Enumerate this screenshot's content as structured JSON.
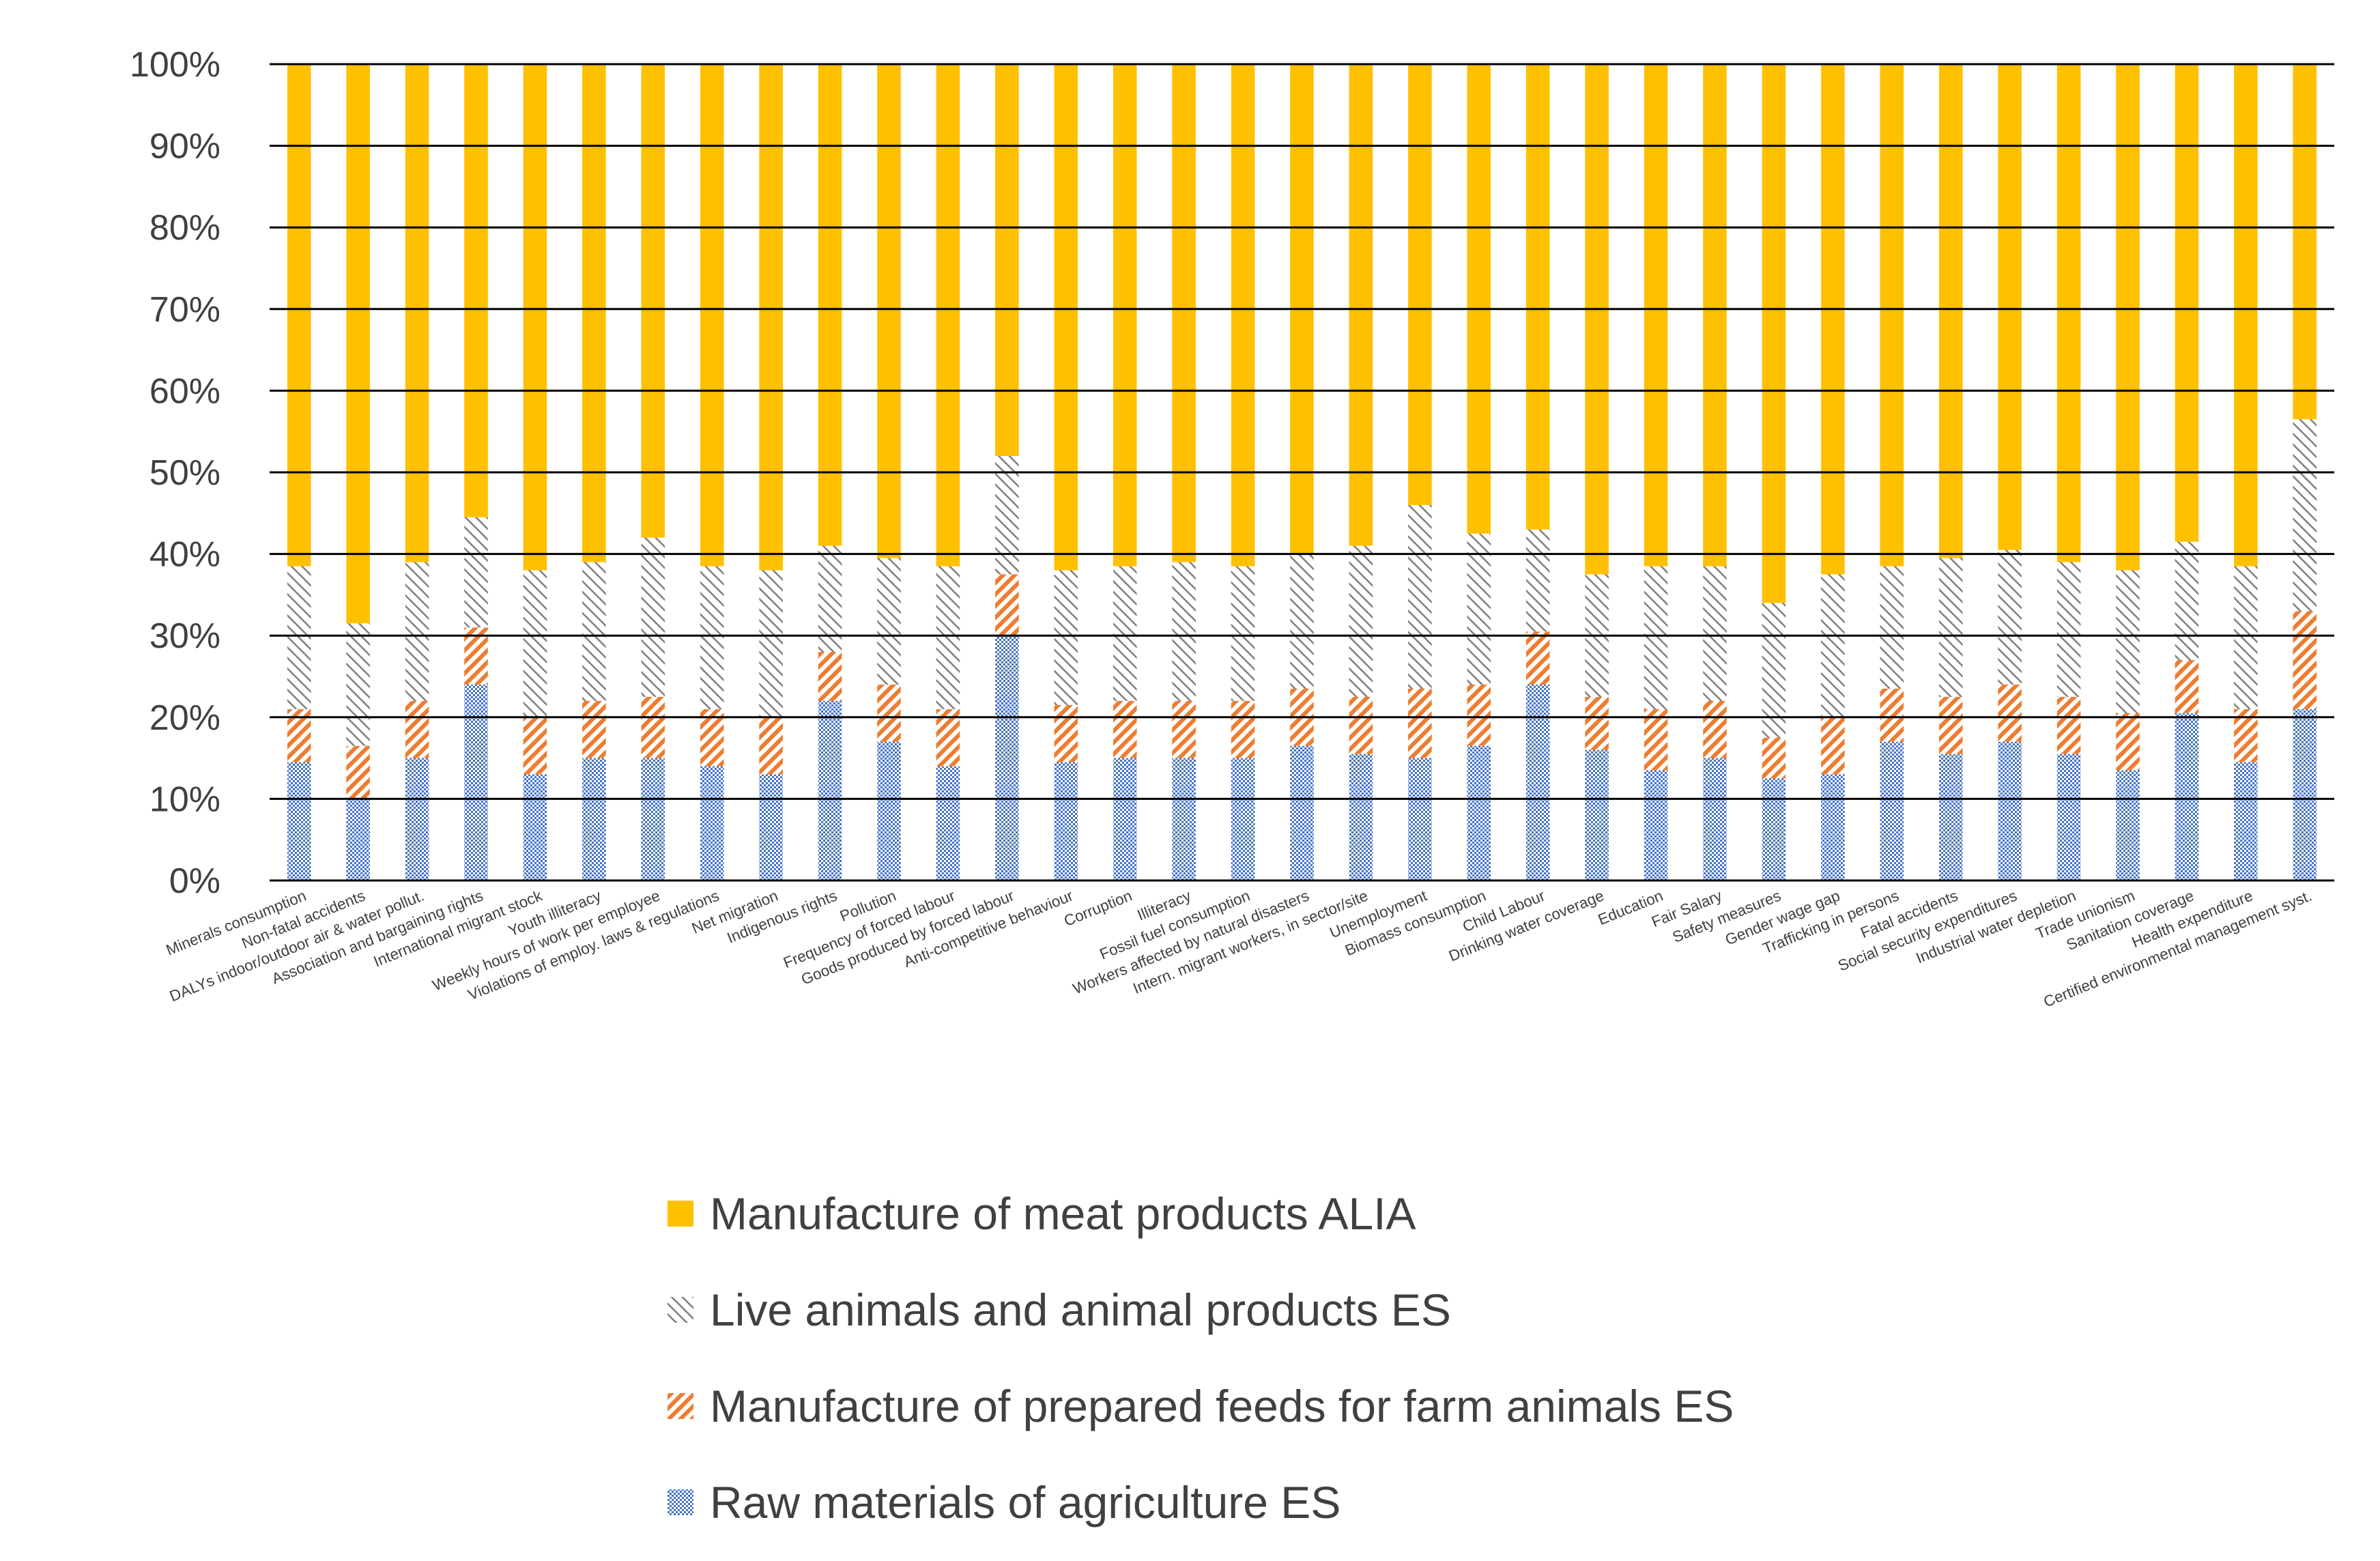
{
  "chart_data": {
    "type": "bar",
    "stacked": "percent",
    "title": "",
    "xlabel": "",
    "ylabel": "",
    "ylim": [
      0,
      100
    ],
    "yticks": [
      "0%",
      "10%",
      "20%",
      "30%",
      "40%",
      "50%",
      "60%",
      "70%",
      "80%",
      "90%",
      "100%"
    ],
    "legend_position": "bottom",
    "categories": [
      "Minerals consumption",
      "Non-fatal accidents",
      "DALYs indoor/outdoor air & water pollut.",
      "Association and bargaining rights",
      "International migrant stock",
      "Youth illiteracy",
      "Weekly hours of work per employee",
      "Violations of employ. laws & regulations",
      "Net migration",
      "Indigenous rights",
      "Pollution",
      "Frequency of forced labour",
      "Goods produced by forced labour",
      "Anti-competitive behaviour",
      "Corruption",
      "Illiteracy",
      "Fossil fuel consumption",
      "Workers affected by natural disasters",
      "Intern. migrant workers, in sector/site",
      "Unemployment",
      "Biomass consumption",
      "Child Labour",
      "Drinking water coverage",
      "Education",
      "Fair Salary",
      "Safety measures",
      "Gender wage gap",
      "Trafficking in persons",
      "Fatal accidents",
      "Social security expenditures",
      "Industrial water depletion",
      "Trade unionism",
      "Sanitation coverage",
      "Health expenditure",
      "Certified environmental management syst."
    ],
    "series": [
      {
        "name": "Raw materials of agriculture ES",
        "color": "#4472C4",
        "pattern": "checker",
        "values": [
          14.5,
          10,
          15,
          24,
          13,
          15,
          15,
          14,
          13,
          22,
          17,
          14,
          30,
          14.5,
          15,
          15,
          15,
          16.5,
          15.5,
          15,
          16.5,
          24,
          16,
          13.5,
          15,
          12.5,
          13,
          17,
          15.5,
          17,
          15.5,
          13.5,
          20.5,
          14.5,
          21
        ]
      },
      {
        "name": "Manufacture of prepared feeds for farm animals ES",
        "color": "#ED7D31",
        "pattern": "diagonal-down",
        "values": [
          6.5,
          6.5,
          7,
          7,
          7,
          7,
          7.5,
          7,
          7,
          6,
          7,
          7,
          7.5,
          7,
          7,
          7,
          7,
          7,
          7,
          8.5,
          7.5,
          6.5,
          6.5,
          7.5,
          7,
          5,
          7,
          6.5,
          7,
          7,
          7,
          7,
          6.5,
          6.5,
          12
        ]
      },
      {
        "name": "Live animals and animal products ES",
        "color": "#7F7F7F",
        "pattern": "diagonal-up",
        "values": [
          17.5,
          15,
          17,
          13.5,
          18,
          17,
          19.5,
          17.5,
          18,
          13,
          15.5,
          17.5,
          14.5,
          16.5,
          16.5,
          17,
          16.5,
          16.5,
          18.5,
          22.5,
          18.5,
          12.5,
          15,
          17.5,
          16.5,
          16.5,
          17.5,
          15,
          17,
          16.5,
          16.5,
          17.5,
          14.5,
          17.5,
          23.5
        ]
      },
      {
        "name": "Manufacture of meat products ALIA",
        "color": "#FFC000",
        "pattern": "solid",
        "values": [
          61.5,
          68.5,
          61,
          55.5,
          62,
          61,
          58,
          61.5,
          62,
          59,
          60.5,
          61.5,
          48,
          62,
          61.5,
          61,
          61.5,
          60,
          59,
          54,
          57.5,
          57,
          62.5,
          61.5,
          61.5,
          66,
          62.5,
          61.5,
          60.5,
          59.5,
          61,
          62,
          58.5,
          61.5,
          43.5
        ]
      }
    ],
    "legend_order": [
      "Manufacture of meat products ALIA",
      "Live animals and animal products ES",
      "Manufacture of prepared feeds for farm animals ES",
      "Raw materials of agriculture ES"
    ]
  }
}
